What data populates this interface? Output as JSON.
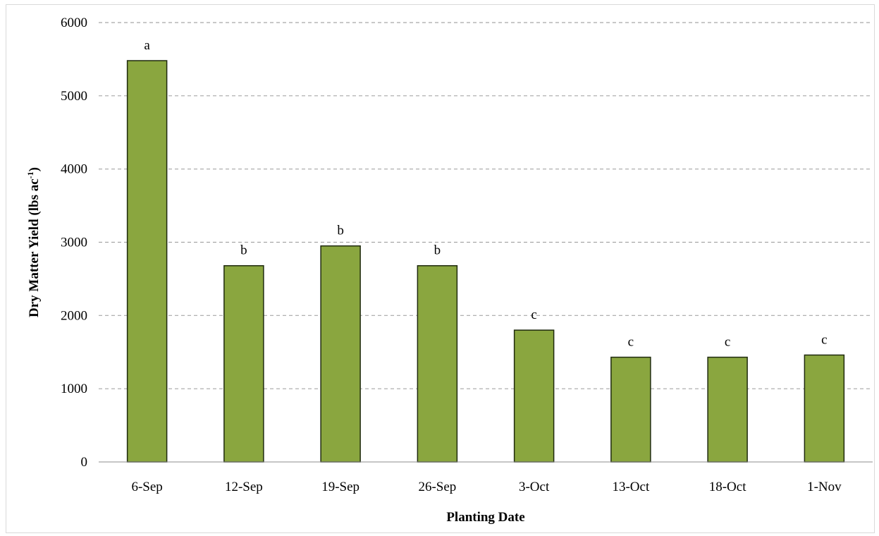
{
  "chart_data": {
    "type": "bar",
    "categories": [
      "6-Sep",
      "12-Sep",
      "19-Sep",
      "26-Sep",
      "3-Oct",
      "13-Oct",
      "18-Oct",
      "1-Nov"
    ],
    "values": [
      5480,
      2680,
      2950,
      2680,
      1800,
      1430,
      1430,
      1460
    ],
    "significance_letters": [
      "a",
      "b",
      "b",
      "b",
      "c",
      "c",
      "c",
      "c"
    ],
    "xlabel": "Planting Date",
    "ylabel": "Dry Matter Yield (lbs ac",
    "ylabel_superscript": "-1",
    "ylabel_close": ")",
    "ylim": [
      0,
      6000
    ],
    "yticks": [
      "0",
      "1000",
      "2000",
      "3000",
      "4000",
      "5000",
      "6000"
    ],
    "ytick_values": [
      0,
      1000,
      2000,
      3000,
      4000,
      5000,
      6000
    ],
    "grid": "horizontal dashed",
    "legend": "none",
    "bar_color": "#8aa63f",
    "bar_stroke": "#1f2a0e",
    "grid_color": "#a6a6a6"
  }
}
